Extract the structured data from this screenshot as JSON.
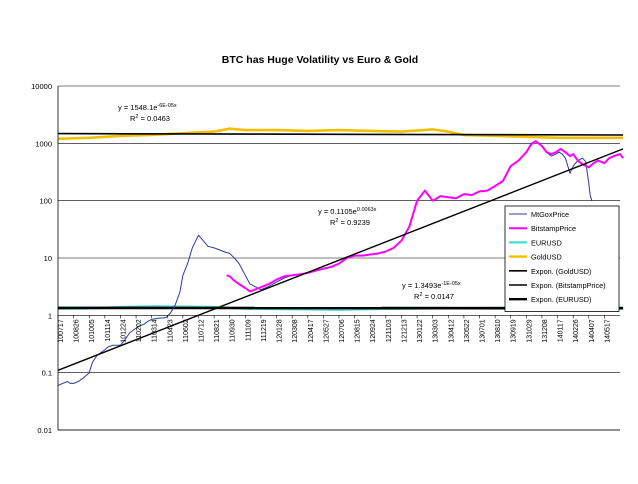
{
  "chart_data": {
    "type": "line",
    "title": "BTC has Huge Volatility vs Euro & Gold",
    "y_scale": "log",
    "ylim": [
      0.01,
      10000
    ],
    "y_ticks": [
      "0.01",
      "0.1",
      "1",
      "10",
      "100",
      "1000",
      "10000"
    ],
    "x_ticks": [
      "100717",
      "100826",
      "101005",
      "101114",
      "101224",
      "110202",
      "110314",
      "110423",
      "110602",
      "110712",
      "110821",
      "110930",
      "111109",
      "111219",
      "120128",
      "120308",
      "120417",
      "120527",
      "120706",
      "120815",
      "120924",
      "121103",
      "121213",
      "130122",
      "130303",
      "130412",
      "130522",
      "130701",
      "130810",
      "130919",
      "131029",
      "131208",
      "140117",
      "140226",
      "140407",
      "140517"
    ],
    "grid": true,
    "legend_position": "right",
    "series": [
      {
        "name": "MtGoxPrice",
        "color": "#2d3a9e",
        "x": [
          0,
          0.3,
          0.6,
          0.8,
          1,
          1.3,
          1.6,
          2,
          2.2,
          2.5,
          3,
          3.2,
          3.5,
          3.8,
          4,
          4.2,
          4.6,
          5,
          5.2,
          5.5,
          5.8,
          6,
          6.5,
          6.8,
          7,
          7.2,
          7.5,
          7.8,
          8,
          8.3,
          8.6,
          9,
          9.3,
          9.6,
          10,
          10.3,
          10.6,
          11,
          11.3,
          11.6,
          12,
          12.3,
          12.6,
          13,
          13.5,
          14,
          14.5,
          15,
          15.5,
          16,
          16.5,
          17,
          17.5,
          18,
          18.5,
          19,
          19.5,
          20,
          20.5,
          21,
          21.5,
          22,
          22.5,
          23,
          23.5,
          24,
          24.5,
          25,
          25.5,
          26,
          26.5,
          27,
          27.5,
          28,
          28.5,
          29,
          29.5,
          30,
          30.3,
          30.6,
          31,
          31.3,
          31.6,
          31.9,
          32.1,
          32.3,
          32.5,
          32.8,
          33,
          33.3,
          33.6,
          33.8,
          34,
          34.1,
          34.2
        ],
        "y": [
          0.06,
          0.065,
          0.07,
          0.065,
          0.065,
          0.07,
          0.08,
          0.1,
          0.15,
          0.2,
          0.25,
          0.28,
          0.3,
          0.3,
          0.3,
          0.35,
          0.5,
          0.6,
          0.65,
          0.7,
          0.8,
          0.85,
          0.9,
          0.9,
          0.95,
          1.1,
          1.5,
          2.5,
          5,
          8,
          15,
          25,
          20,
          16,
          15,
          14,
          13,
          12,
          10,
          8,
          5,
          3.5,
          3.2,
          2.8,
          3.2,
          3.8,
          4.5,
          5,
          5.2,
          5.5,
          6,
          6.5,
          7,
          8,
          10,
          11,
          11,
          11.5,
          12,
          13,
          15,
          20,
          35,
          100,
          150,
          100,
          120,
          115,
          110,
          130,
          125,
          145,
          150,
          180,
          220,
          400,
          500,
          700,
          1000,
          1100,
          900,
          700,
          600,
          650,
          700,
          650,
          550,
          300,
          400,
          500,
          550,
          480,
          200,
          120,
          100
        ]
      },
      {
        "name": "BitstampPrice",
        "color": "#ff00ff",
        "x": [
          10.8,
          11,
          11.3,
          11.6,
          12,
          12.3,
          12.6,
          13,
          13.5,
          14,
          14.5,
          15,
          15.5,
          16,
          16.5,
          17,
          17.5,
          18,
          18.5,
          19,
          19.5,
          20,
          20.5,
          21,
          21.5,
          22,
          22.5,
          23,
          23.5,
          24,
          24.5,
          25,
          25.5,
          26,
          26.5,
          27,
          27.5,
          28,
          28.5,
          29,
          29.5,
          30,
          30.3,
          30.6,
          31,
          31.3,
          31.6,
          31.9,
          32.2,
          32.5,
          32.8,
          33,
          33.3,
          33.6,
          34,
          34.3,
          34.6,
          35,
          35.3,
          35.6,
          36,
          36.2
        ],
        "y": [
          5,
          4.8,
          4,
          3.5,
          3,
          2.6,
          2.8,
          3.1,
          3.5,
          4.2,
          4.8,
          5,
          5.2,
          5.5,
          6,
          6.5,
          7,
          8,
          10,
          11,
          11,
          11.5,
          12,
          13,
          15,
          20,
          35,
          100,
          150,
          100,
          120,
          115,
          110,
          130,
          125,
          145,
          150,
          180,
          220,
          400,
          500,
          700,
          950,
          1100,
          900,
          700,
          650,
          700,
          800,
          700,
          600,
          650,
          500,
          430,
          380,
          450,
          500,
          450,
          550,
          600,
          650,
          550
        ]
      },
      {
        "name": "EURUSD",
        "color": "#40e0d0",
        "x": [
          0,
          2,
          4,
          6,
          8,
          10,
          12,
          14,
          16,
          18,
          20,
          22,
          24,
          26,
          28,
          30,
          32,
          34,
          36.2
        ],
        "y": [
          1.3,
          1.32,
          1.4,
          1.43,
          1.42,
          1.4,
          1.3,
          1.28,
          1.27,
          1.25,
          1.28,
          1.3,
          1.32,
          1.33,
          1.35,
          1.36,
          1.37,
          1.38,
          1.37
        ]
      },
      {
        "name": "GoldUSD",
        "color": "#f0c000",
        "x": [
          0,
          2,
          4,
          6,
          8,
          10,
          11,
          12,
          14,
          16,
          18,
          20,
          22,
          24,
          25,
          26,
          28,
          30,
          32,
          34,
          36.2
        ],
        "y": [
          1200,
          1250,
          1350,
          1400,
          1500,
          1600,
          1800,
          1700,
          1700,
          1650,
          1700,
          1650,
          1600,
          1750,
          1600,
          1400,
          1350,
          1300,
          1250,
          1250,
          1250
        ]
      },
      {
        "name": "Expon. (GoldUSD)",
        "color": "#000000",
        "x": [
          0,
          36.2
        ],
        "y": [
          1480,
          1395
        ]
      },
      {
        "name": "Expon. (BitstampPrice)",
        "color": "#000000",
        "x": [
          0,
          36.2
        ],
        "y": [
          0.11,
          800
        ]
      },
      {
        "name": "Expon. (EURUSD)",
        "color": "#000000",
        "x": [
          0,
          36.2
        ],
        "y": [
          1.349,
          1.33
        ]
      }
    ],
    "annotations": [
      {
        "eq_prefix": "y = 1548.1e",
        "eq_exp": "-6E-05x",
        "r2_label": "R",
        "r2_value": " = 0.0463"
      },
      {
        "eq_prefix": "y = 0.1105e",
        "eq_exp": "0.0063x",
        "r2_label": "R",
        "r2_value": " = 0.9239"
      },
      {
        "eq_prefix": "y = 1.3493e",
        "eq_exp": "-1E-05x",
        "r2_label": "R",
        "r2_value": " = 0.0147"
      }
    ]
  }
}
